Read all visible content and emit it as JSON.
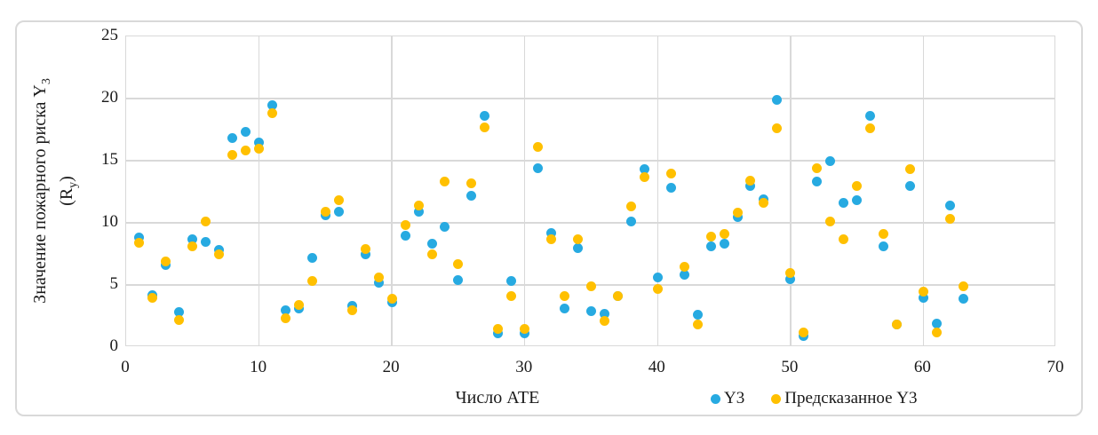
{
  "chart_data": {
    "type": "scatter",
    "title": "",
    "xlabel": "Число АТЕ",
    "ylabel": {
      "line1_main": "Значение пожарного риска Y",
      "line1_sub": "3",
      "line2_pre": "(R",
      "line2_sub": "у",
      "line2_post": ")"
    },
    "xlim": [
      0,
      70
    ],
    "ylim": [
      0,
      25
    ],
    "x_ticks": [
      0,
      10,
      20,
      30,
      40,
      50,
      60,
      70
    ],
    "y_ticks": [
      0,
      5,
      10,
      15,
      20,
      25
    ],
    "grid": true,
    "legend_position": "bottom-right",
    "marker": "circle",
    "x": [
      1,
      2,
      3,
      4,
      5,
      6,
      7,
      8,
      9,
      10,
      11,
      12,
      13,
      14,
      15,
      16,
      17,
      18,
      19,
      20,
      21,
      22,
      23,
      24,
      25,
      26,
      27,
      28,
      29,
      30,
      31,
      32,
      33,
      34,
      35,
      36,
      37,
      38,
      39,
      40,
      41,
      42,
      43,
      44,
      45,
      46,
      47,
      48,
      49,
      50,
      51,
      52,
      53,
      54,
      55,
      56,
      57,
      58,
      59,
      60,
      61,
      62,
      63
    ],
    "series": [
      {
        "name": "Y3",
        "color": "#27AAE1",
        "values": [
          8.8,
          4.2,
          6.6,
          2.8,
          8.7,
          8.5,
          7.8,
          16.8,
          17.3,
          16.5,
          19.5,
          3.0,
          3.1,
          7.2,
          10.6,
          10.9,
          3.3,
          7.5,
          5.2,
          3.6,
          9.0,
          10.9,
          8.3,
          9.7,
          5.4,
          12.2,
          18.6,
          1.1,
          5.3,
          1.1,
          14.4,
          9.2,
          3.1,
          8.0,
          2.9,
          2.7,
          4.1,
          10.1,
          14.3,
          5.6,
          12.8,
          5.8,
          2.6,
          8.1,
          8.3,
          10.5,
          13.0,
          11.9,
          19.9,
          5.5,
          0.9,
          13.3,
          15.0,
          11.6,
          11.8,
          18.6,
          8.1,
          1.8,
          13.0,
          4.0,
          1.9,
          11.4,
          3.9
        ]
      },
      {
        "name": "Предсказанное Y3",
        "color": "#FFC000",
        "values": [
          8.4,
          4.0,
          6.9,
          2.2,
          8.1,
          10.1,
          7.5,
          15.5,
          15.8,
          16.0,
          18.8,
          2.3,
          3.4,
          5.3,
          10.9,
          11.8,
          3.0,
          7.9,
          5.6,
          3.9,
          9.8,
          11.4,
          7.5,
          13.3,
          6.7,
          13.2,
          17.7,
          1.5,
          4.1,
          1.5,
          16.1,
          8.7,
          4.1,
          8.7,
          4.9,
          2.1,
          4.1,
          11.3,
          13.7,
          4.7,
          14.0,
          6.5,
          1.8,
          8.9,
          9.1,
          10.8,
          13.4,
          11.6,
          17.6,
          6.0,
          1.2,
          14.4,
          10.1,
          8.7,
          13.0,
          17.6,
          9.1,
          1.8,
          14.3,
          4.5,
          1.2,
          10.3,
          4.9
        ]
      }
    ]
  },
  "colors": {
    "gridline": "#d9d9d9",
    "frame_border": "#d9d9d9",
    "text": "#1a1a1a",
    "background": "#ffffff"
  }
}
